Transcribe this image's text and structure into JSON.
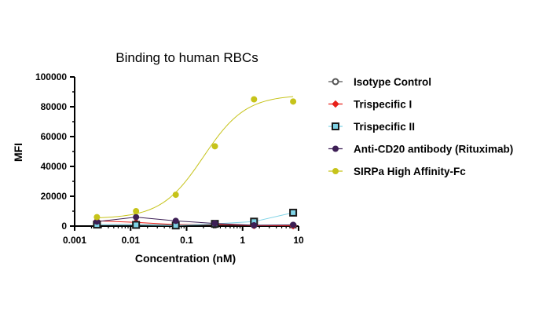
{
  "chart_data": {
    "type": "scatter",
    "title": "Binding to human RBCs",
    "xlabel": "Concentration (nM)",
    "ylabel": "MFI",
    "xscale": "log",
    "xlim": [
      0.001,
      10
    ],
    "ylim": [
      0,
      100000
    ],
    "xticks": [
      {
        "value": 0.001,
        "label": "0.001"
      },
      {
        "value": 0.01,
        "label": "0.01"
      },
      {
        "value": 0.1,
        "label": "0.1"
      },
      {
        "value": 1,
        "label": "1"
      },
      {
        "value": 10,
        "label": "10"
      }
    ],
    "yticks": [
      {
        "value": 0,
        "label": "0"
      },
      {
        "value": 20000,
        "label": "20000"
      },
      {
        "value": 40000,
        "label": "40000"
      },
      {
        "value": 60000,
        "label": "60000"
      },
      {
        "value": 80000,
        "label": "80000"
      },
      {
        "value": 100000,
        "label": "100000"
      }
    ],
    "grid": false,
    "legend_position": "right",
    "series": [
      {
        "name": "Isotype Control",
        "marker": "circle-open",
        "marker_fill": "#ffffff",
        "marker_stroke": "#555555",
        "line_color": "#555555",
        "points": [
          [
            0.0025,
            1000
          ],
          [
            0.0125,
            1000
          ],
          [
            0.064,
            800
          ],
          [
            0.32,
            700
          ],
          [
            1.6,
            600
          ],
          [
            8,
            500
          ]
        ]
      },
      {
        "name": "Trispecific I",
        "marker": "diamond",
        "marker_fill": "#e8211a",
        "marker_stroke": "#e8211a",
        "line_color": "#e8211a",
        "points": [
          [
            0.0025,
            3500
          ],
          [
            0.0125,
            2500
          ],
          [
            0.064,
            1000
          ],
          [
            0.32,
            1200
          ],
          [
            1.6,
            300
          ],
          [
            8,
            200
          ]
        ]
      },
      {
        "name": "Trispecific II",
        "marker": "square",
        "marker_fill": "#7fd3e6",
        "marker_stroke": "#1a1a1a",
        "line_color": "#7fd3e6",
        "points": [
          [
            0.0025,
            1000
          ],
          [
            0.0125,
            800
          ],
          [
            0.064,
            400
          ],
          [
            0.32,
            1500
          ],
          [
            1.6,
            3000
          ],
          [
            8,
            9000
          ]
        ]
      },
      {
        "name": "Anti-CD20 antibody (Rituximab)",
        "marker": "circle",
        "marker_fill": "#3d1f55",
        "marker_stroke": "#3d1f55",
        "line_color": "#3d1f55",
        "points": [
          [
            0.0025,
            3000
          ],
          [
            0.0125,
            6000
          ],
          [
            0.064,
            3500
          ],
          [
            0.32,
            1800
          ],
          [
            1.6,
            500
          ],
          [
            8,
            800
          ]
        ]
      },
      {
        "name": "SIRPa High Affinity-Fc",
        "marker": "circle",
        "marker_fill": "#c6c31a",
        "marker_stroke": "#c6c31a",
        "line_color": "#c6c31a",
        "fit": {
          "bottom": 5000,
          "top": 88000,
          "ec50": 0.2,
          "hill": 1.15
        },
        "points": [
          [
            0.0025,
            6000
          ],
          [
            0.0125,
            10000
          ],
          [
            0.064,
            21000
          ],
          [
            0.32,
            53500
          ],
          [
            1.6,
            85000
          ],
          [
            8,
            83500
          ]
        ]
      }
    ]
  }
}
